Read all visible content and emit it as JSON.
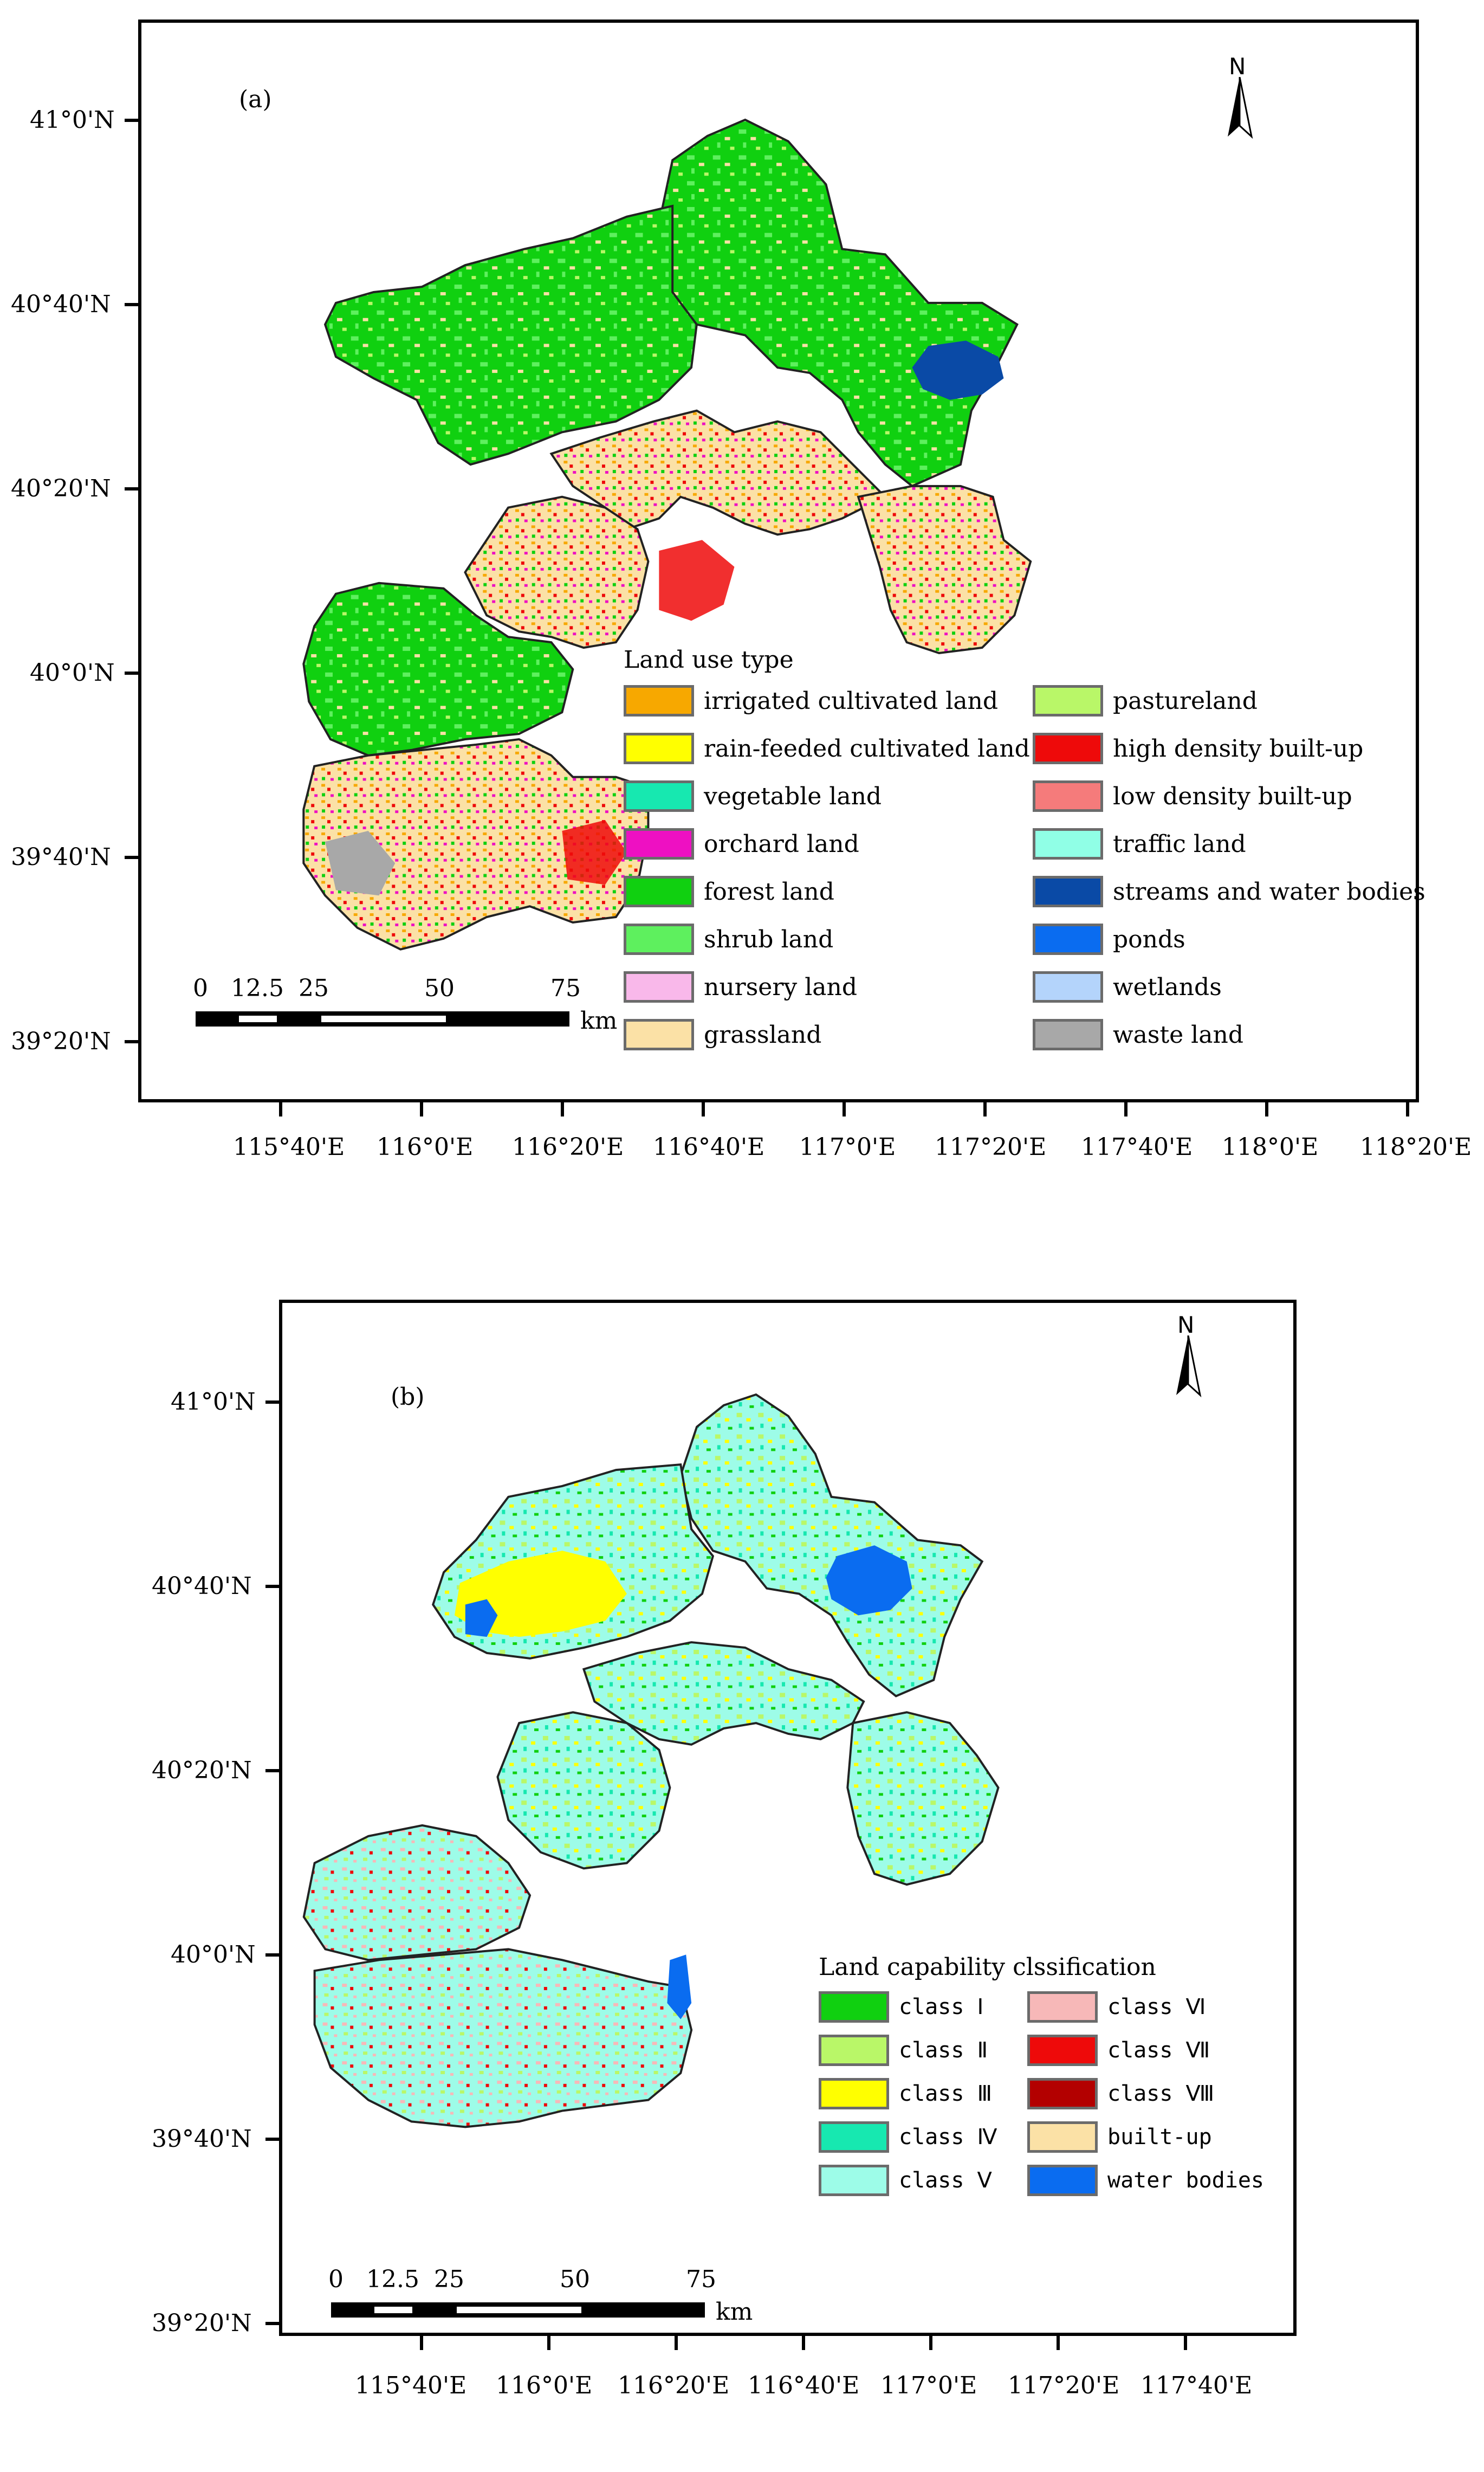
{
  "panel_a": {
    "label": "(a)",
    "north": "N",
    "lat_ticks": [
      "41°0'N",
      "40°40'N",
      "40°20'N",
      "40°0'N",
      "39°40'N",
      "39°20'N"
    ],
    "lon_ticks": [
      "115°40'E",
      "116°0'E",
      "116°20'E",
      "116°40'E",
      "117°0'E",
      "117°20'E",
      "117°40'E",
      "118°0'E",
      "118°20'E"
    ],
    "scale": {
      "ticks": [
        "0",
        "12.5",
        "25",
        "50",
        "75"
      ],
      "unit": "km"
    },
    "legend": {
      "title": "Land use type",
      "items": [
        {
          "label": "irrigated cultivated land",
          "color": "#f7a800"
        },
        {
          "label": "rain-feeded cultivated land",
          "color": "#ffff00"
        },
        {
          "label": "vegetable land",
          "color": "#17e8b0"
        },
        {
          "label": "orchard land",
          "color": "#ee10c2"
        },
        {
          "label": "forest land",
          "color": "#10d010"
        },
        {
          "label": "shrub land",
          "color": "#5ef05e"
        },
        {
          "label": "nursery land",
          "color": "#f9b8ea"
        },
        {
          "label": "grassland",
          "color": "#fbe1a6"
        },
        {
          "label": "pastureland",
          "color": "#b9f768"
        },
        {
          "label": "high density built-up",
          "color": "#ee0a0a"
        },
        {
          "label": "low density built-up",
          "color": "#f57b7b"
        },
        {
          "label": "traffic land",
          "color": "#90ffe6"
        },
        {
          "label": "streams and water bodies",
          "color": "#0a4aa6"
        },
        {
          "label": "ponds",
          "color": "#0a6cf0"
        },
        {
          "label": "wetlands",
          "color": "#b4d4fb"
        },
        {
          "label": "waste land",
          "color": "#a8a8a8"
        }
      ]
    }
  },
  "panel_b": {
    "label": "(b)",
    "north": "N",
    "lat_ticks": [
      "41°0'N",
      "40°40'N",
      "40°20'N",
      "40°0'N",
      "39°40'N",
      "39°20'N"
    ],
    "lon_ticks": [
      "115°40'E",
      "116°0'E",
      "116°20'E",
      "116°40'E",
      "117°0'E",
      "117°20'E",
      "117°40'E"
    ],
    "scale": {
      "ticks": [
        "0",
        "12.5",
        "25",
        "50",
        "75"
      ],
      "unit": "km"
    },
    "legend": {
      "title": "Land capability clssification",
      "items": [
        {
          "label": "class Ⅰ",
          "color": "#10d010"
        },
        {
          "label": "class Ⅱ",
          "color": "#b9f768"
        },
        {
          "label": "class Ⅲ",
          "color": "#ffff00"
        },
        {
          "label": "class Ⅳ",
          "color": "#17e8b0"
        },
        {
          "label": "class Ⅴ",
          "color": "#9dfce8"
        },
        {
          "label": "class Ⅵ",
          "color": "#f7b8b8"
        },
        {
          "label": "class Ⅶ",
          "color": "#ee0a0a"
        },
        {
          "label": "class Ⅷ",
          "color": "#b30000"
        },
        {
          "label": "built-up",
          "color": "#fbe1a6"
        },
        {
          "label": "water bodies",
          "color": "#0a6cf0"
        }
      ]
    }
  }
}
